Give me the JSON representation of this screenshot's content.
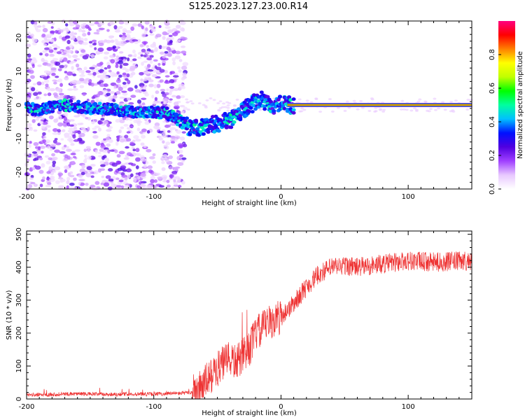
{
  "title": "S125.2023.127.23.00.R14",
  "chart_data": [
    {
      "type": "heatmap",
      "xlabel": "Height of straight line (km)",
      "ylabel": "Frequency (Hz)",
      "xlim": [
        -200,
        150
      ],
      "ylim": [
        -25,
        25
      ],
      "xticks": [
        -200,
        -100,
        0,
        100
      ],
      "yticks": [
        -20,
        -10,
        0,
        10,
        20
      ],
      "colorbar": {
        "label": "Normalized spectral amplitude",
        "range": [
          0,
          1
        ],
        "ticks": [
          "0.0",
          "0.2",
          "0.4",
          "0.6",
          "0.8"
        ],
        "colormap": [
          "#ffffff",
          "#e8c8ff",
          "#a040ff",
          "#5000e0",
          "#0010ff",
          "#00c0ff",
          "#00ffa0",
          "#00ff00",
          "#c0ff00",
          "#ffff00",
          "#ff8000",
          "#ff0000",
          "#ff0080"
        ]
      },
      "ridge": {
        "x": [
          -200,
          -190,
          -180,
          -170,
          -160,
          -150,
          -140,
          -130,
          -120,
          -110,
          -100,
          -90,
          -80,
          -75,
          -70,
          -65,
          -60,
          -55,
          -50,
          -45,
          -40,
          -35,
          -30,
          -25,
          -20,
          -15,
          -10,
          -5,
          0,
          5,
          10,
          50,
          100,
          150
        ],
        "freq": [
          -1,
          -1.5,
          -0.5,
          0,
          -0.5,
          -1,
          -1,
          -1.5,
          -2,
          -2,
          -2,
          -2.5,
          -4.5,
          -6,
          -7,
          -7,
          -6.5,
          -6,
          -5.5,
          -5,
          -4.5,
          -3,
          -1.5,
          -0.5,
          1,
          1.5,
          0,
          -0.5,
          0.5,
          0,
          0,
          0,
          0,
          0
        ]
      }
    },
    {
      "type": "line",
      "xlabel": "Height of straight line (km)",
      "ylabel": "SNR (10 * v/v)",
      "xlim": [
        -200,
        150
      ],
      "ylim": [
        0,
        510
      ],
      "xticks": [
        -200,
        -100,
        0,
        100
      ],
      "yticks": [
        0,
        100,
        200,
        300,
        400,
        500
      ],
      "color": "#ee3333",
      "trend": {
        "x": [
          -200,
          -180,
          -160,
          -140,
          -120,
          -100,
          -90,
          -80,
          -70,
          -65,
          -60,
          -55,
          -50,
          -45,
          -40,
          -35,
          -30,
          -25,
          -20,
          -15,
          -10,
          -5,
          0,
          10,
          20,
          30,
          40,
          50,
          60,
          80,
          100,
          120,
          150
        ],
        "y": [
          12,
          14,
          16,
          14,
          15,
          15,
          16,
          17,
          20,
          30,
          50,
          70,
          90,
          110,
          120,
          110,
          130,
          150,
          200,
          210,
          230,
          240,
          250,
          290,
          340,
          380,
          400,
          405,
          400,
          410,
          420,
          415,
          420
        ]
      }
    }
  ]
}
